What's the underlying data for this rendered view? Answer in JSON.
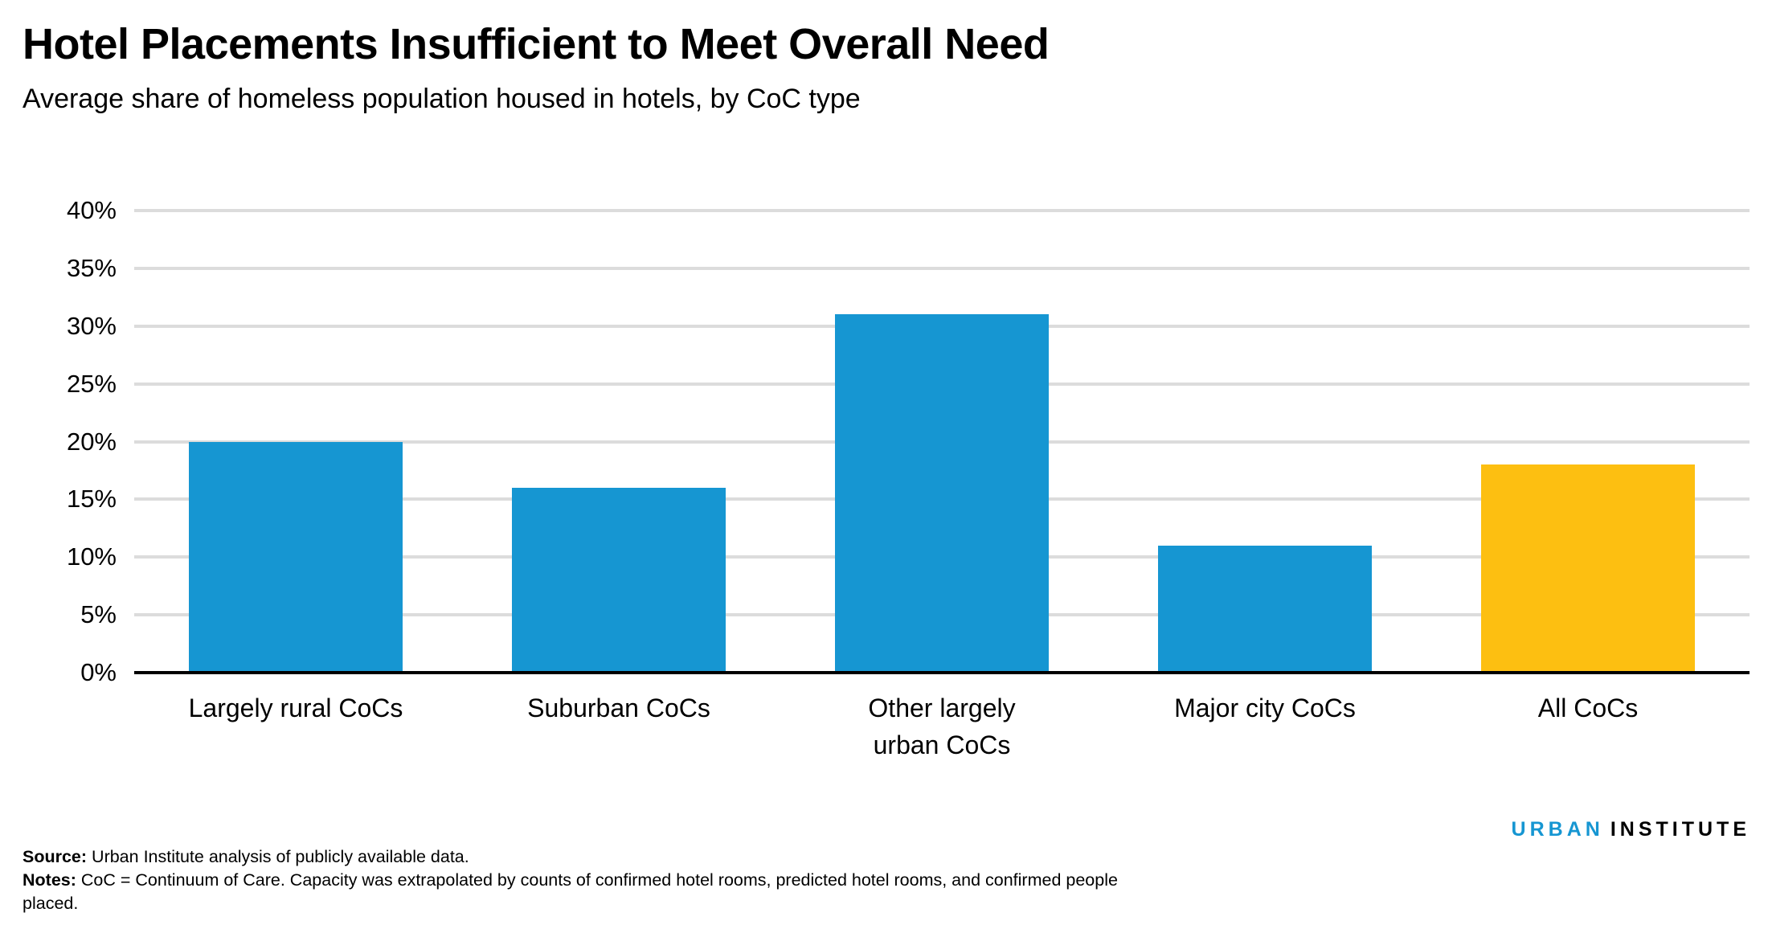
{
  "title": "Hotel Placements Insufficient to Meet Overall Need",
  "subtitle": "Average share of homeless population housed in hotels, by CoC type",
  "chart_data": {
    "type": "bar",
    "categories": [
      "Largely rural CoCs",
      "Suburban CoCs",
      "Other largely\nurban CoCs",
      "Major city CoCs",
      "All CoCs"
    ],
    "values": [
      20,
      16,
      31,
      11,
      18
    ],
    "value_unit": "%",
    "bar_colors": [
      "#1696d2",
      "#1696d2",
      "#1696d2",
      "#1696d2",
      "#fdbf11"
    ],
    "title": "Hotel Placements Insufficient to Meet Overall Need",
    "subtitle": "Average share of homeless population housed in hotels, by CoC type",
    "xlabel": "",
    "ylabel": "",
    "ylim": [
      0,
      40
    ],
    "ytick_step": 5,
    "ytick_labels": [
      "40%",
      "35%",
      "30%",
      "25%",
      "20%",
      "15%",
      "10%",
      "5%",
      "0%"
    ],
    "grid": "horizontal-only",
    "gridline_color": "#dcdcdc",
    "axis_color": "#000000",
    "legend": "none"
  },
  "footer": {
    "source_label": "Source:",
    "source_text": " Urban Institute analysis of publicly available data.",
    "notes_label": "Notes:",
    "notes_text": " CoC = Continuum of Care. Capacity was extrapolated by counts of confirmed hotel rooms, predicted hotel rooms, and confirmed people placed."
  },
  "logo": {
    "word1": "URBAN",
    "word2": "INSTITUTE",
    "word1_color": "#1696d2",
    "word2_color": "#000000"
  }
}
